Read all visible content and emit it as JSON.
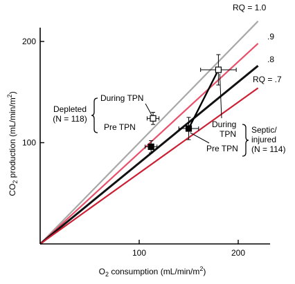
{
  "chart_data": {
    "type": "line",
    "title": "",
    "xlabel": {
      "main": "O",
      "sub": "2",
      "rest": " consumption (mL/min/m",
      "sup": "2",
      "end": ")"
    },
    "ylabel": {
      "main": "CO",
      "sub": "2",
      "rest": " production (mL/min/m",
      "sup": "2",
      "end": ")"
    },
    "xlim": [
      0,
      230
    ],
    "ylim": [
      0,
      200
    ],
    "x_ticks": [
      100,
      200
    ],
    "y_ticks": [
      100,
      200
    ],
    "x_tick_labels": [
      "100",
      "200"
    ],
    "y_tick_labels": [
      "100",
      "200"
    ],
    "colors": {
      "rq_1_0": "#a8a8a8",
      "rq_0_9": "#e8506a",
      "rq_0_8": "#111111",
      "rq_0_7": "#cc1f33",
      "points": "#000000"
    },
    "series": [
      {
        "name": "RQ = 1.0",
        "label": "RQ = 1.0",
        "slope": 1.0,
        "x": [
          0,
          220
        ],
        "y": [
          0,
          220
        ],
        "color_key": "rq_1_0"
      },
      {
        "name": ".9",
        "label": ".9",
        "slope": 0.9,
        "x": [
          0,
          220
        ],
        "y": [
          0,
          198
        ],
        "color_key": "rq_0_9"
      },
      {
        "name": ".8",
        "label": ".8",
        "slope": 0.8,
        "x": [
          0,
          220
        ],
        "y": [
          0,
          176
        ],
        "color_key": "rq_0_8"
      },
      {
        "name": "RQ = .7",
        "label": "RQ = .7",
        "slope": 0.7,
        "x": [
          0,
          220
        ],
        "y": [
          0,
          154
        ],
        "color_key": "rq_0_7"
      }
    ],
    "groups": [
      {
        "label_lines": [
          "Depleted",
          "(N = 118)"
        ],
        "points": [
          {
            "label": "Pre TPN",
            "x": 112,
            "y": 96,
            "marker": "filled-square",
            "xerr": 6,
            "yerr": 6
          },
          {
            "label": "During TPN",
            "x": 114,
            "y": 124,
            "marker": "open-square",
            "xerr": 6,
            "yerr": 6
          }
        ]
      },
      {
        "label_lines": [
          "Septic/",
          "injured",
          "(N = 114)"
        ],
        "points": [
          {
            "label": "Pre TPN",
            "x": 150,
            "y": 114,
            "marker": "filled-square",
            "xerr": 10,
            "yerr": 11
          },
          {
            "label": "During TPN",
            "x": 180,
            "y": 172,
            "marker": "open-square",
            "xerr": 18,
            "yerr": 15
          }
        ]
      }
    ],
    "connector": {
      "from": [
        150,
        114
      ],
      "to": [
        180,
        172
      ]
    }
  }
}
